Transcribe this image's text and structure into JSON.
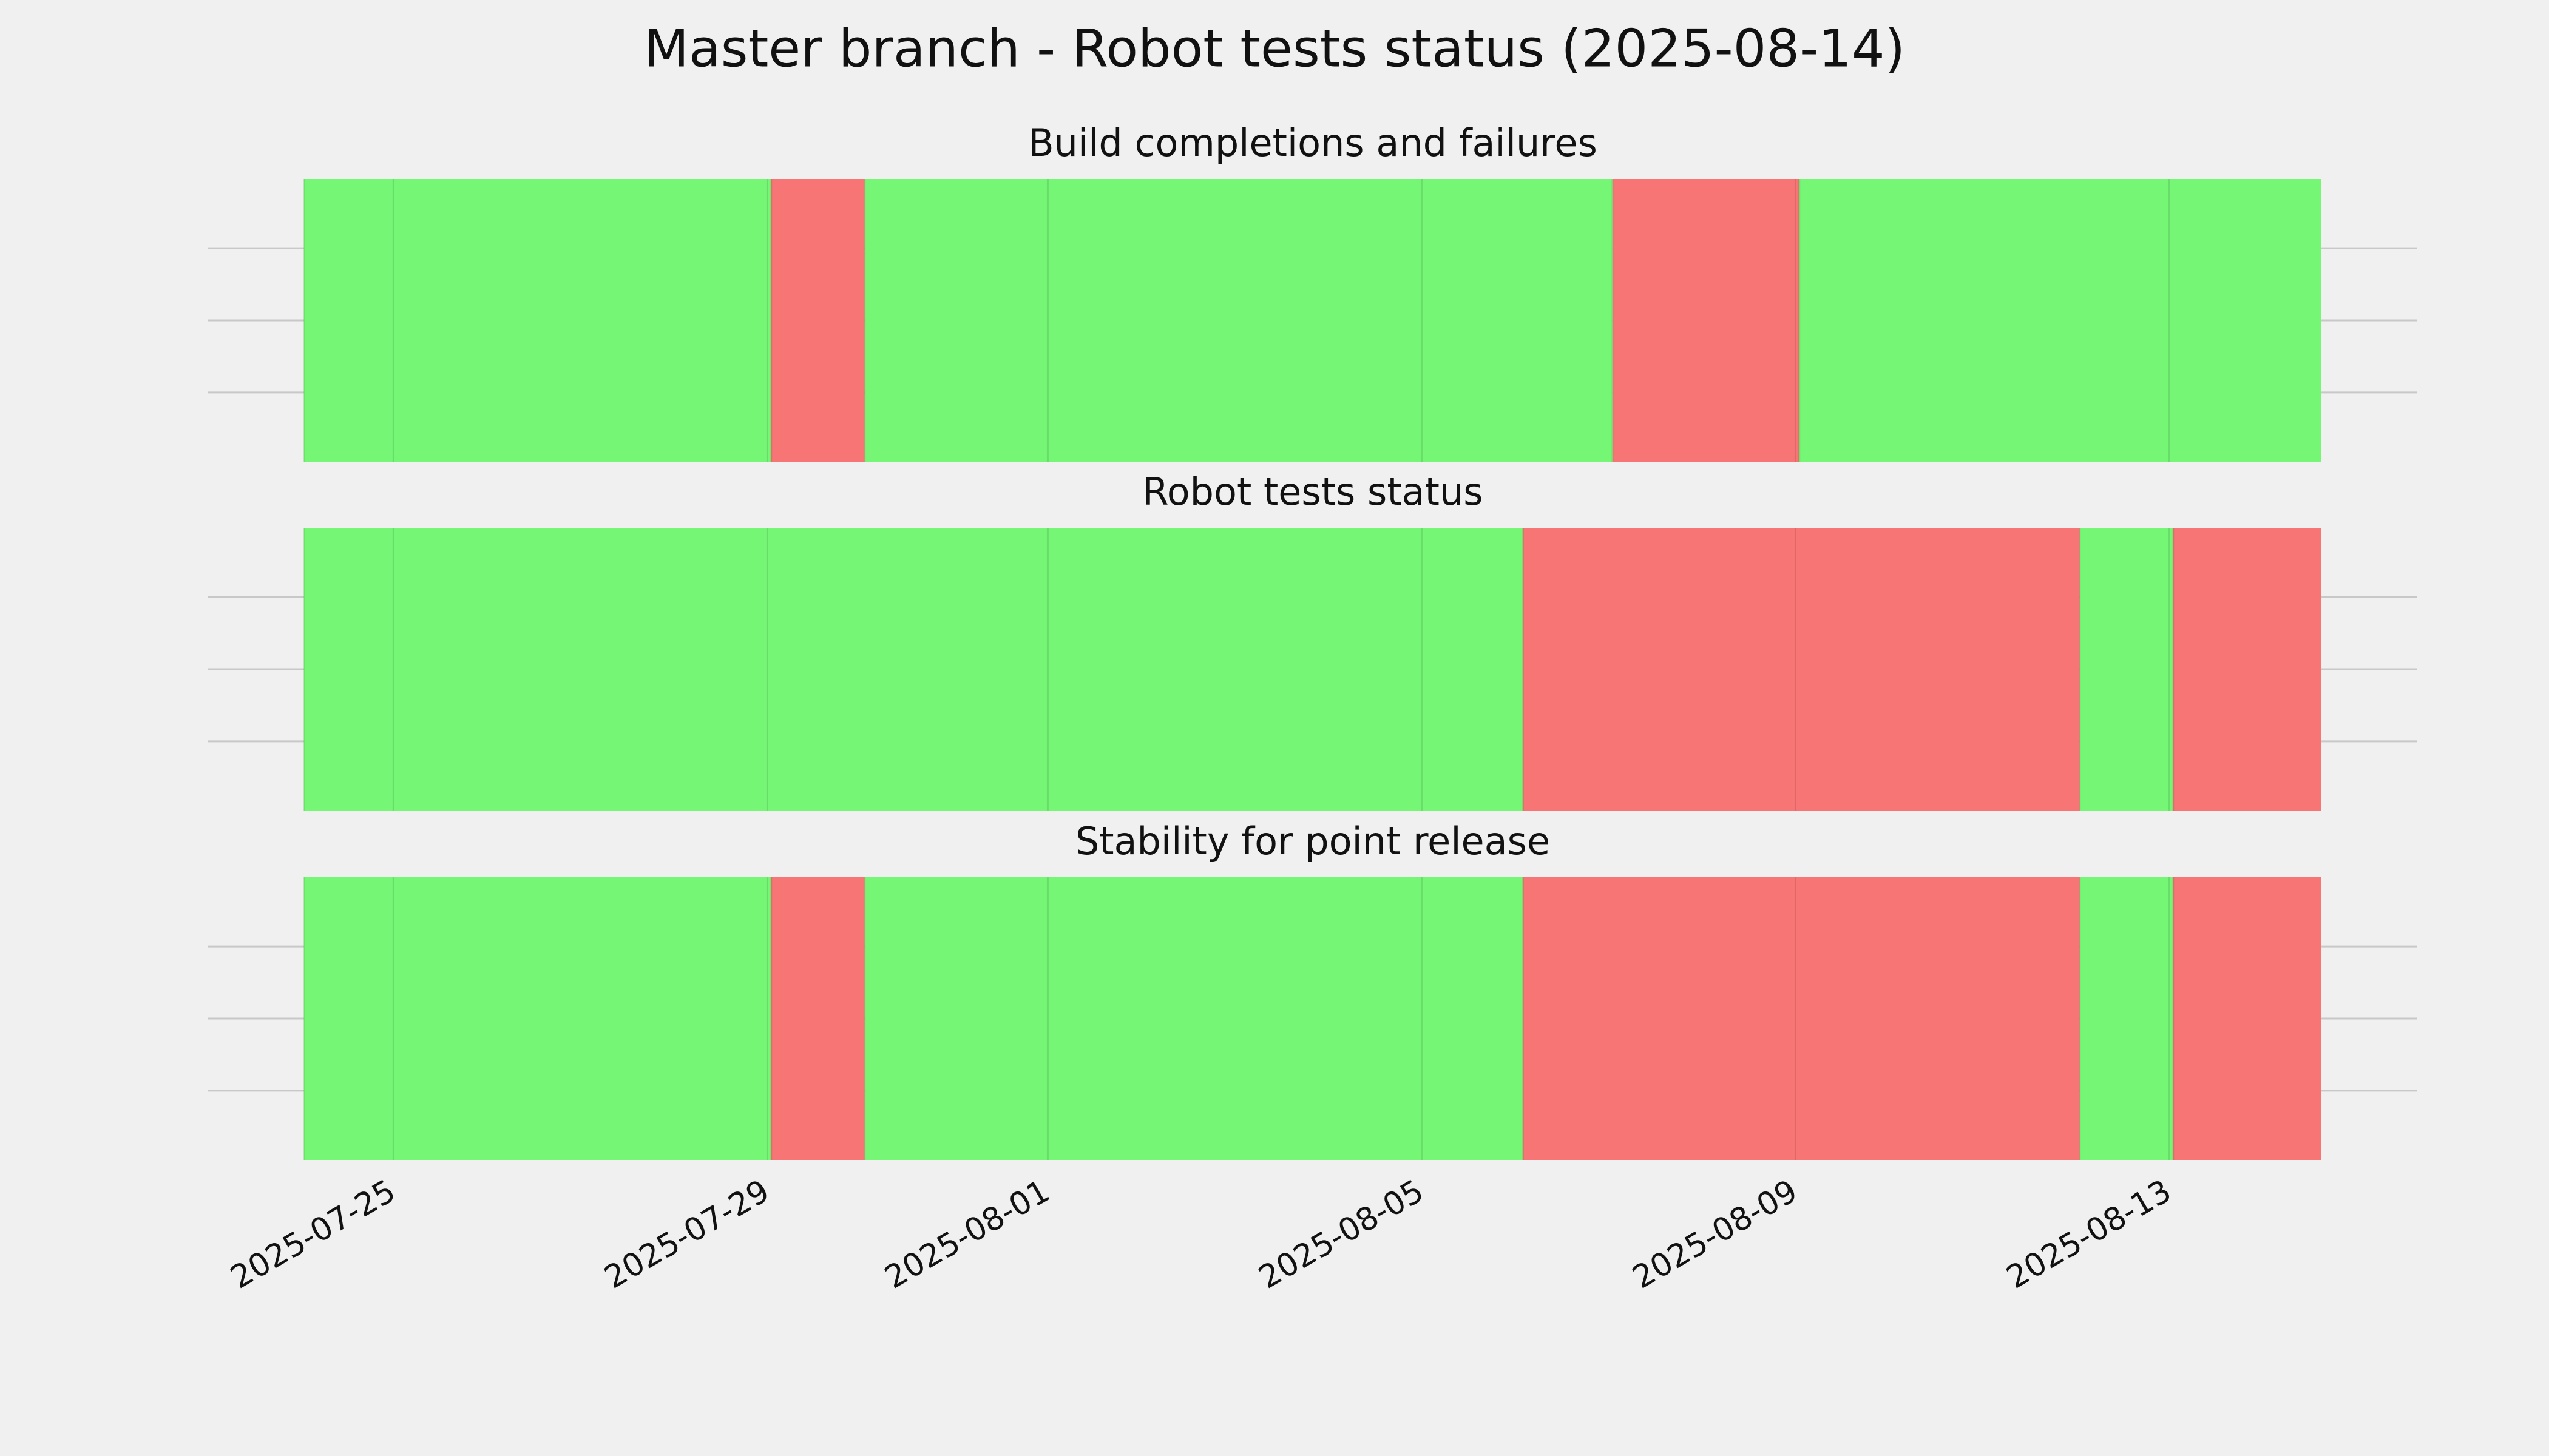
{
  "title": "Master branch - Robot tests status (2025-08-14)",
  "chart_data": [
    {
      "type": "timeline",
      "title": "Build completions and failures",
      "grid": true,
      "xlim": [
        "2025-07-23T00:25",
        "2025-08-15T15:40"
      ],
      "xticks": [
        "2025-07-25",
        "2025-07-29",
        "2025-08-01",
        "2025-08-05",
        "2025-08-09",
        "2025-08-13"
      ],
      "segments": [
        {
          "start": "2025-07-24T01:00",
          "end": "2025-07-29T01:00",
          "color": "#75f775"
        },
        {
          "start": "2025-07-29T01:00",
          "end": "2025-07-30T01:00",
          "color": "#f77575"
        },
        {
          "start": "2025-07-30T01:00",
          "end": "2025-08-07T01:00",
          "color": "#75f775"
        },
        {
          "start": "2025-08-07T01:00",
          "end": "2025-08-09T01:00",
          "color": "#f77575"
        },
        {
          "start": "2025-08-09T01:00",
          "end": "2025-08-14T15:00",
          "color": "#75f775"
        }
      ]
    },
    {
      "type": "timeline",
      "title": "Robot tests status",
      "grid": true,
      "xlim": [
        "2025-07-23T00:25",
        "2025-08-15T15:40"
      ],
      "xticks": [
        "2025-07-25",
        "2025-07-29",
        "2025-08-01",
        "2025-08-05",
        "2025-08-09",
        "2025-08-13"
      ],
      "segments": [
        {
          "start": "2025-07-24T01:00",
          "end": "2025-08-06T02:00",
          "color": "#75f775"
        },
        {
          "start": "2025-08-06T02:00",
          "end": "2025-08-12T01:00",
          "color": "#f77575"
        },
        {
          "start": "2025-08-12T01:00",
          "end": "2025-08-13T01:00",
          "color": "#75f775"
        },
        {
          "start": "2025-08-13T01:00",
          "end": "2025-08-14T15:00",
          "color": "#f77575"
        }
      ]
    },
    {
      "type": "timeline",
      "title": "Stability for point release",
      "grid": true,
      "xlim": [
        "2025-07-23T00:25",
        "2025-08-15T15:40"
      ],
      "xticks": [
        "2025-07-25",
        "2025-07-29",
        "2025-08-01",
        "2025-08-05",
        "2025-08-09",
        "2025-08-13"
      ],
      "show_tick_labels": true,
      "segments": [
        {
          "start": "2025-07-24T01:00",
          "end": "2025-07-29T01:00",
          "color": "#75f775"
        },
        {
          "start": "2025-07-29T01:00",
          "end": "2025-07-30T01:00",
          "color": "#f77575"
        },
        {
          "start": "2025-07-30T01:00",
          "end": "2025-08-06T02:00",
          "color": "#75f775"
        },
        {
          "start": "2025-08-06T02:00",
          "end": "2025-08-12T01:00",
          "color": "#f77575"
        },
        {
          "start": "2025-08-12T01:00",
          "end": "2025-08-13T01:00",
          "color": "#75f775"
        },
        {
          "start": "2025-08-13T01:00",
          "end": "2025-08-14T15:00",
          "color": "#f77575"
        }
      ]
    }
  ]
}
